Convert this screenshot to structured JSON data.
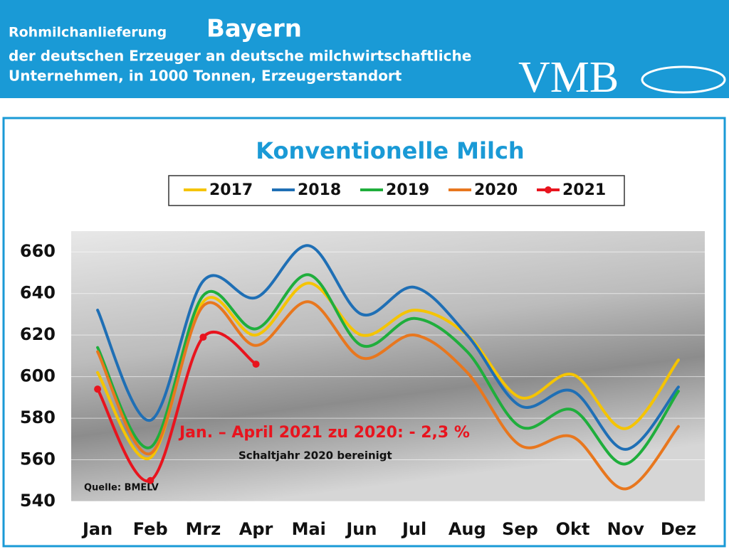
{
  "header": {
    "line1": "Rohmilchanlieferung",
    "region": "Bayern",
    "line2": "der deutschen Erzeuger an deutsche milchwirtschaftliche",
    "line3": "Unternehmen, in 1000 Tonnen, Erzeugerstandort",
    "logo": "VMB"
  },
  "chart_data": {
    "type": "line",
    "title": "Konventionelle Milch",
    "categories": [
      "Jan",
      "Feb",
      "Mrz",
      "Apr",
      "Mai",
      "Jun",
      "Jul",
      "Aug",
      "Sep",
      "Okt",
      "Nov",
      "Dez"
    ],
    "series": [
      {
        "name": "2017",
        "color": "#f5c400",
        "values": [
          602,
          561,
          636,
          620,
          645,
          620,
          632,
          620,
          590,
          601,
          575,
          608
        ]
      },
      {
        "name": "2018",
        "color": "#1f6fb5",
        "values": [
          632,
          579,
          646,
          638,
          663,
          630,
          643,
          620,
          586,
          593,
          565,
          595
        ]
      },
      {
        "name": "2019",
        "color": "#1fae3c",
        "values": [
          614,
          566,
          639,
          623,
          649,
          615,
          628,
          612,
          576,
          584,
          558,
          593
        ]
      },
      {
        "name": "2020",
        "color": "#e8771e",
        "values": [
          612,
          563,
          634,
          615,
          636,
          609,
          620,
          602,
          567,
          571,
          546,
          576
        ]
      },
      {
        "name": "2021",
        "color": "#e8141e",
        "markers": true,
        "values": [
          594,
          550,
          619,
          606,
          null,
          null,
          null,
          null,
          null,
          null,
          null,
          null
        ]
      }
    ],
    "ylim": [
      540,
      670
    ],
    "yticks": [
      540,
      560,
      580,
      600,
      620,
      640,
      660
    ],
    "grid": true,
    "legend": "top",
    "annotations": [
      "Jan. – April 2021 zu 2020: - 2,3 %",
      "Schaltjahr 2020 bereinigt",
      "Quelle: BMELV"
    ]
  }
}
